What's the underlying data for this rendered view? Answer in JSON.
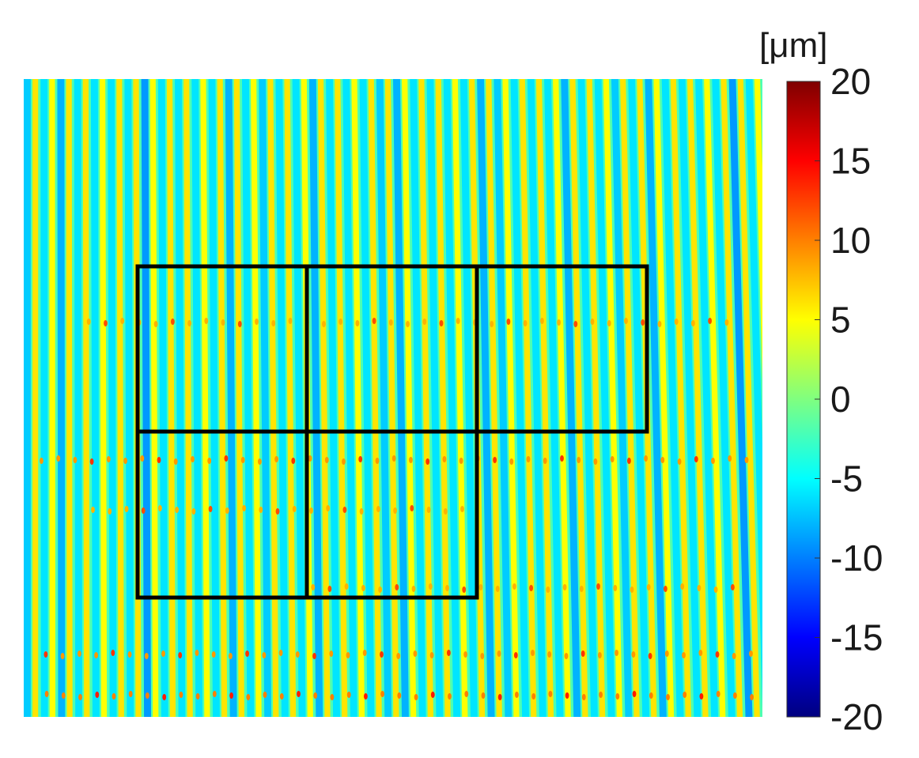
{
  "chart_data": {
    "type": "heatmap",
    "colormap": "jet",
    "colorbar": {
      "unit_label": "[μm]",
      "range": [
        -20,
        20
      ],
      "ticks": [
        20,
        15,
        10,
        5,
        0,
        -5,
        -10,
        -15,
        -20
      ],
      "tick_labels": [
        "20",
        "15",
        "10",
        "5",
        "0",
        "-5",
        "-10",
        "-15",
        "-20"
      ],
      "placement": "right"
    },
    "pattern": {
      "description_values": "vertical stripe height field",
      "stripe_count": 44,
      "peak_value": 6,
      "trough_value": -6,
      "baseline_value": -2
    },
    "grid_overlay": {
      "color": "#000000",
      "rows": [
        {
          "cells": 3
        },
        {
          "cells": 2
        }
      ]
    }
  }
}
